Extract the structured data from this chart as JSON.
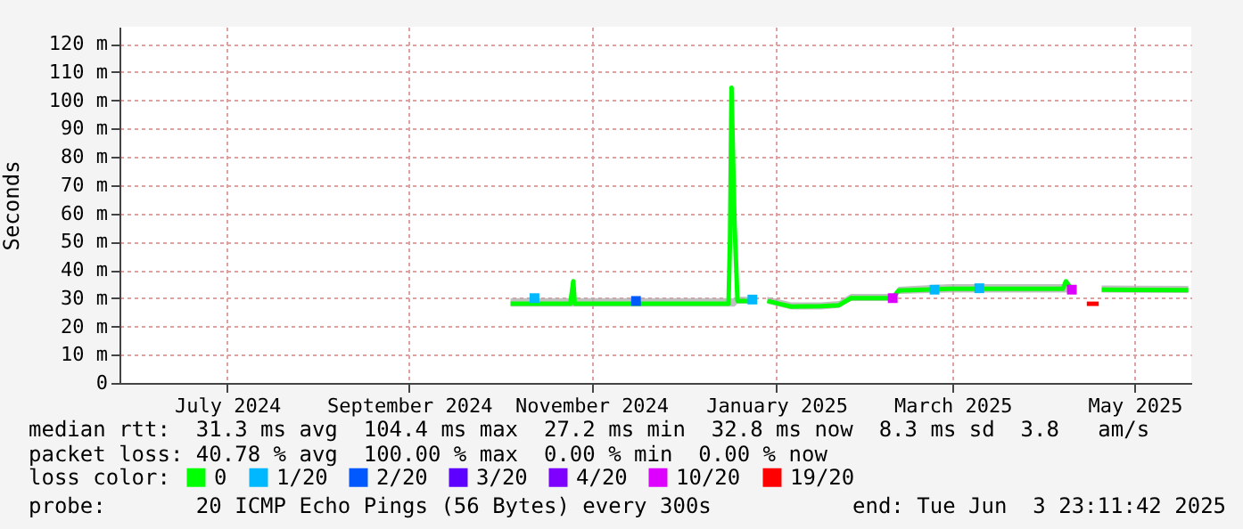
{
  "chart_data": {
    "type": "line",
    "ylabel": "Seconds",
    "legend_title": "loss color:",
    "legend": "bottom",
    "grid": true,
    "line_style": "solid",
    "xlim": [
      "2024-06-10",
      "2025-06-04"
    ],
    "xticks": [
      {
        "value": "2024-07-16",
        "label": "July 2024"
      },
      {
        "value": "2024-09-15",
        "label": "September 2024"
      },
      {
        "value": "2024-11-15",
        "label": "November 2024"
      },
      {
        "value": "2025-01-16",
        "label": "January 2025"
      },
      {
        "value": "2025-03-16",
        "label": "March 2025"
      },
      {
        "value": "2025-05-16",
        "label": "May 2025"
      }
    ],
    "ylim": [
      0,
      126
    ],
    "yticks": [
      {
        "value": 0,
        "label": "0"
      },
      {
        "value": 10,
        "label": "10 m"
      },
      {
        "value": 20,
        "label": "20 m"
      },
      {
        "value": 30,
        "label": "30 m"
      },
      {
        "value": 40,
        "label": "40 m"
      },
      {
        "value": 50,
        "label": "50 m"
      },
      {
        "value": 60,
        "label": "60 m"
      },
      {
        "value": 70,
        "label": "70 m"
      },
      {
        "value": 80,
        "label": "80 m"
      },
      {
        "value": 90,
        "label": "90 m"
      },
      {
        "value": 100,
        "label": "100 m"
      },
      {
        "value": 110,
        "label": "110 m"
      },
      {
        "value": 120,
        "label": "120 m"
      }
    ],
    "series": [
      {
        "name": "0",
        "color": "#00ff00",
        "type": "line",
        "x": [
          "2024-10-19",
          "2024-11-08",
          "2024-11-09",
          "2024-11-09T12:00",
          "2024-12-31",
          "2024-12-31T12:00",
          "2025-01-01",
          "2025-01-02",
          "2025-01-03",
          "2025-01-08",
          "2025-01-10",
          "2025-01-13",
          "2025-01-17",
          "2025-01-21",
          "2025-01-31",
          "2025-02-06",
          "2025-02-10",
          "2025-02-24",
          "2025-02-26",
          "2025-03-15",
          "2025-04-22",
          "2025-04-23",
          "2025-04-25",
          "2025-04-27",
          "2025-05-05",
          "2025-06-03"
        ],
        "values": [
          28,
          28,
          36,
          28,
          28,
          51,
          104.4,
          57,
          29,
          29,
          null,
          29,
          28,
          27,
          27.2,
          27.5,
          30,
          30,
          32.7,
          33.3,
          33.3,
          36,
          33,
          null,
          33,
          32.8
        ],
        "lower": [
          27,
          27,
          27,
          27,
          27,
          27,
          27,
          27,
          28,
          28,
          null,
          28,
          27,
          26,
          26,
          26.5,
          29,
          29,
          31.5,
          32,
          32,
          32,
          32,
          null,
          32,
          31.8
        ],
        "upper": [
          30,
          30,
          30,
          30,
          30,
          30,
          30,
          30,
          30.5,
          30.5,
          null,
          30.5,
          29.5,
          28.5,
          28.5,
          29,
          31.5,
          31.5,
          34,
          35,
          35,
          35,
          34.5,
          null,
          34.5,
          34.3
        ]
      },
      {
        "name": "1/20",
        "color": "#00b8ff",
        "type": "scatter",
        "x": [
          "2024-10-27",
          "2025-01-08",
          "2025-03-10",
          "2025-03-25"
        ],
        "values": [
          30,
          29.5,
          33,
          33.5
        ]
      },
      {
        "name": "2/20",
        "color": "#0059ff",
        "type": "scatter",
        "x": [
          "2024-11-30"
        ],
        "values": [
          29
        ]
      },
      {
        "name": "3/20",
        "color": "#5e00ff",
        "type": "scatter"
      },
      {
        "name": "4/20",
        "color": "#7e00ff",
        "type": "scatter"
      },
      {
        "name": "10/20",
        "color": "#dd00ff",
        "type": "scatter",
        "x": [
          "2025-02-24",
          "2025-04-25"
        ],
        "values": [
          30,
          33
        ]
      },
      {
        "name": "19/20",
        "color": "#ff0000",
        "type": "line",
        "x": [
          "2025-04-30",
          "2025-05-04"
        ],
        "values": [
          28,
          28
        ]
      }
    ],
    "annotations": [
      "median rtt:  31.3 ms avg  104.4 ms max  27.2 ms min  32.8 ms now  8.3 ms sd  3.8   am/s",
      "packet loss: 40.78 % avg  100.00 % max  0.00 % min  0.00 % now",
      "probe:       20 ICMP Echo Pings (56 Bytes) every 300s",
      "end: Tue Jun  3 23:11:42 2025"
    ]
  }
}
